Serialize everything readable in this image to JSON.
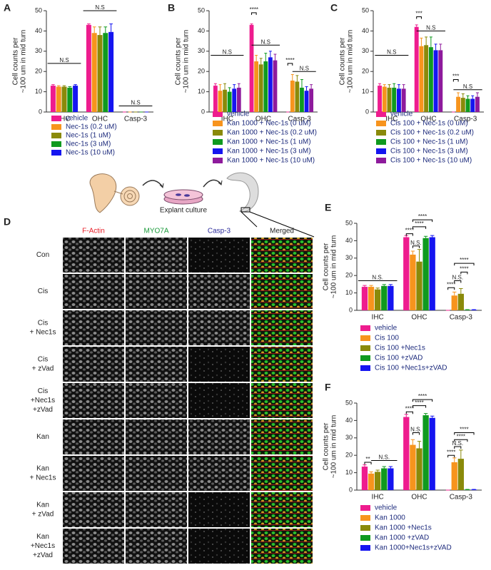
{
  "chart_data": [
    {
      "panel": "A",
      "type": "bar",
      "ylabel": [
        "Cell counts per",
        "~100 um in mid turn"
      ],
      "categories": [
        "IHC",
        "OHC",
        "Casp-3"
      ],
      "ylim": [
        0,
        50
      ],
      "yticks": [
        0,
        10,
        20,
        30,
        40,
        50
      ],
      "series": [
        {
          "name": "vehicle",
          "color": "#ee1c8e",
          "values": [
            13,
            43,
            0
          ],
          "errors": [
            0.5,
            0.5,
            0
          ]
        },
        {
          "name": "Nec-1s (0.2 uM)",
          "color": "#f7941d",
          "values": [
            12.5,
            39,
            0
          ],
          "errors": [
            0.5,
            3,
            0
          ]
        },
        {
          "name": "Nec-1s (1 uM)",
          "color": "#8a8a0a",
          "values": [
            12.5,
            38,
            0
          ],
          "errors": [
            0.5,
            4,
            0
          ]
        },
        {
          "name": "Nec-1s (3 uM)",
          "color": "#0f9a1f",
          "values": [
            12,
            39,
            0
          ],
          "errors": [
            0.5,
            3,
            0
          ]
        },
        {
          "name": "Nec-1s (10 uM)",
          "color": "#1515f0",
          "values": [
            13,
            39.5,
            0
          ],
          "errors": [
            0.5,
            4,
            0
          ]
        }
      ],
      "annotations": [
        "N.S",
        "N.S",
        "N.S"
      ]
    },
    {
      "panel": "B",
      "type": "bar",
      "ylabel": [
        "Cell counts per",
        "~100 um in mid turn"
      ],
      "categories": [
        "IHC",
        "OHC",
        "Casp-3"
      ],
      "ylim": [
        0,
        50
      ],
      "yticks": [
        0,
        10,
        20,
        30,
        40,
        50
      ],
      "series": [
        {
          "name": "vehicle",
          "color": "#ee1c8e",
          "values": [
            13,
            43,
            0
          ],
          "errors": [
            1,
            0.5,
            0
          ]
        },
        {
          "name": "Kan 1000 + Nec-1s (0 uM)",
          "color": "#f7941d",
          "values": [
            10.5,
            25,
            15.5
          ],
          "errors": [
            3,
            3,
            3
          ]
        },
        {
          "name": "Kan 1000  + Nec-1s (0.2 uM)",
          "color": "#8a8a0a",
          "values": [
            11,
            23.5,
            15
          ],
          "errors": [
            3,
            3,
            3
          ]
        },
        {
          "name": "Kan 1000  + Nec-1s (1 uM)",
          "color": "#0f9a1f",
          "values": [
            10,
            25,
            12
          ],
          "errors": [
            2,
            4,
            4
          ]
        },
        {
          "name": "Kan 1000  + Nec-1s (3 uM)",
          "color": "#1515f0",
          "values": [
            11.5,
            27,
            10.5
          ],
          "errors": [
            2,
            3,
            2
          ]
        },
        {
          "name": "Kan 1000  + Nec-1s (10 uM)",
          "color": "#8e1a9c",
          "values": [
            12,
            25.5,
            11.5
          ],
          "errors": [
            2,
            3,
            2
          ]
        }
      ],
      "annotations": [
        "****",
        "N.S",
        "N.S",
        "****",
        "N.S"
      ]
    },
    {
      "panel": "C",
      "type": "bar",
      "ylabel": [
        "Cell counts per",
        "~100 um in mid turn"
      ],
      "categories": [
        "IHC",
        "OHC",
        "Casp-3"
      ],
      "ylim": [
        0,
        50
      ],
      "yticks": [
        0,
        10,
        20,
        30,
        40,
        50
      ],
      "series": [
        {
          "name": "vehicle",
          "color": "#ee1c8e",
          "values": [
            13,
            42,
            0
          ],
          "errors": [
            1,
            1,
            0
          ]
        },
        {
          "name": "Cis 100 + Nec-1s (0 uM)",
          "color": "#f7941d",
          "values": [
            12.5,
            32.5,
            7.5
          ],
          "errors": [
            1,
            4,
            2
          ]
        },
        {
          "name": "Cis 100 + Nec-1s (0.2 uM)",
          "color": "#8a8a0a",
          "values": [
            12,
            33,
            7
          ],
          "errors": [
            1.5,
            4,
            2
          ]
        },
        {
          "name": "Cis 100 + Nec-1s (1 uM)",
          "color": "#0f9a1f",
          "values": [
            12,
            32,
            6.5
          ],
          "errors": [
            2,
            5,
            1.5
          ]
        },
        {
          "name": "Cis 100 + Nec-1s (3 uM)",
          "color": "#1515f0",
          "values": [
            11.5,
            30.5,
            6.5
          ],
          "errors": [
            2,
            3,
            1.5
          ]
        },
        {
          "name": "Cis 100 + Nec-1s (10 uM)",
          "color": "#8e1a9c",
          "values": [
            11.5,
            30.5,
            7.5
          ],
          "errors": [
            2,
            3,
            2
          ]
        }
      ],
      "annotations": [
        "***",
        "N.S",
        "N.S",
        "***",
        "N.S"
      ]
    },
    {
      "panel": "E",
      "type": "bar",
      "ylabel": [
        "Cell counts per",
        "~100 um in mid turn"
      ],
      "categories": [
        "IHC",
        "OHC",
        "Casp-3"
      ],
      "ylim": [
        0,
        50
      ],
      "yticks": [
        0,
        10,
        20,
        30,
        40,
        50
      ],
      "series": [
        {
          "name": "vehicle",
          "color": "#ee1c8e",
          "values": [
            13.5,
            42,
            0
          ],
          "errors": [
            0.8,
            1,
            0
          ]
        },
        {
          "name": "Cis 100",
          "color": "#f7941d",
          "values": [
            13.5,
            32,
            8.5
          ],
          "errors": [
            0.8,
            2,
            2
          ]
        },
        {
          "name": "Cis 100 +Nec1s",
          "color": "#8a8a0a",
          "values": [
            12,
            28,
            9.5
          ],
          "errors": [
            0.8,
            7,
            3
          ]
        },
        {
          "name": "Cis 100 +zVAD",
          "color": "#0f9a1f",
          "values": [
            14,
            41.5,
            0.3
          ],
          "errors": [
            0.8,
            1,
            0.1
          ]
        },
        {
          "name": "Cis 100 +Nec1s+zVAD",
          "color": "#1515f0",
          "values": [
            14,
            42,
            0.3
          ],
          "errors": [
            0.8,
            1,
            0.1
          ]
        }
      ],
      "annotations": [
        "N.S.",
        "****",
        "N.S.",
        "****",
        "****",
        "****",
        "N.S.",
        "****",
        "****"
      ]
    },
    {
      "panel": "F",
      "type": "bar",
      "ylabel": [
        "Cell counts per",
        "~100 um in mid turn"
      ],
      "categories": [
        "IHC",
        "OHC",
        "Casp-3"
      ],
      "ylim": [
        0,
        50
      ],
      "yticks": [
        0,
        10,
        20,
        30,
        40,
        50
      ],
      "series": [
        {
          "name": "vehicle",
          "color": "#ee1c8e",
          "values": [
            13.5,
            42,
            0
          ],
          "errors": [
            1,
            1.5,
            0
          ]
        },
        {
          "name": "Kan 1000",
          "color": "#f7941d",
          "values": [
            9.5,
            26,
            16
          ],
          "errors": [
            1,
            3,
            2.5
          ]
        },
        {
          "name": "Kan 1000 +Nec1s",
          "color": "#8a8a0a",
          "values": [
            10.5,
            24,
            18
          ],
          "errors": [
            1,
            4,
            5
          ]
        },
        {
          "name": "Kan 1000 +zVAD",
          "color": "#0f9a1f",
          "values": [
            12.5,
            43,
            0.3
          ],
          "errors": [
            1,
            1,
            0.1
          ]
        },
        {
          "name": "Kan 1000+Nec1s+zVAD",
          "color": "#1515f0",
          "values": [
            12.5,
            41.5,
            0.3
          ],
          "errors": [
            1,
            1,
            0.1
          ]
        }
      ],
      "annotations": [
        "**",
        "N.S.",
        "****",
        "N.S.",
        "****",
        "****",
        "****",
        "N.S.",
        "****",
        "****"
      ]
    }
  ],
  "panel_d": {
    "label": "D",
    "illustration_label": "Explant culture",
    "columns": [
      {
        "text": "F-Actin",
        "color": "#e8202a"
      },
      {
        "text": "MYO7A",
        "color": "#1a9a3a"
      },
      {
        "text": "Casp-3",
        "color": "#2a2a9a"
      },
      {
        "text": "Merged",
        "color": "#222222"
      }
    ],
    "rows": [
      [
        "Con"
      ],
      [
        "Cis"
      ],
      [
        "Cis",
        "+ Nec1s"
      ],
      [
        "Cis",
        "+ zVad"
      ],
      [
        "Cis",
        "+Nec1s",
        "+zVad"
      ],
      [
        "Kan"
      ],
      [
        "Kan",
        "+ Nec1s"
      ],
      [
        "Kan",
        "+ zVad"
      ],
      [
        "Kan",
        "+Nec1s",
        "+zVad"
      ]
    ]
  }
}
